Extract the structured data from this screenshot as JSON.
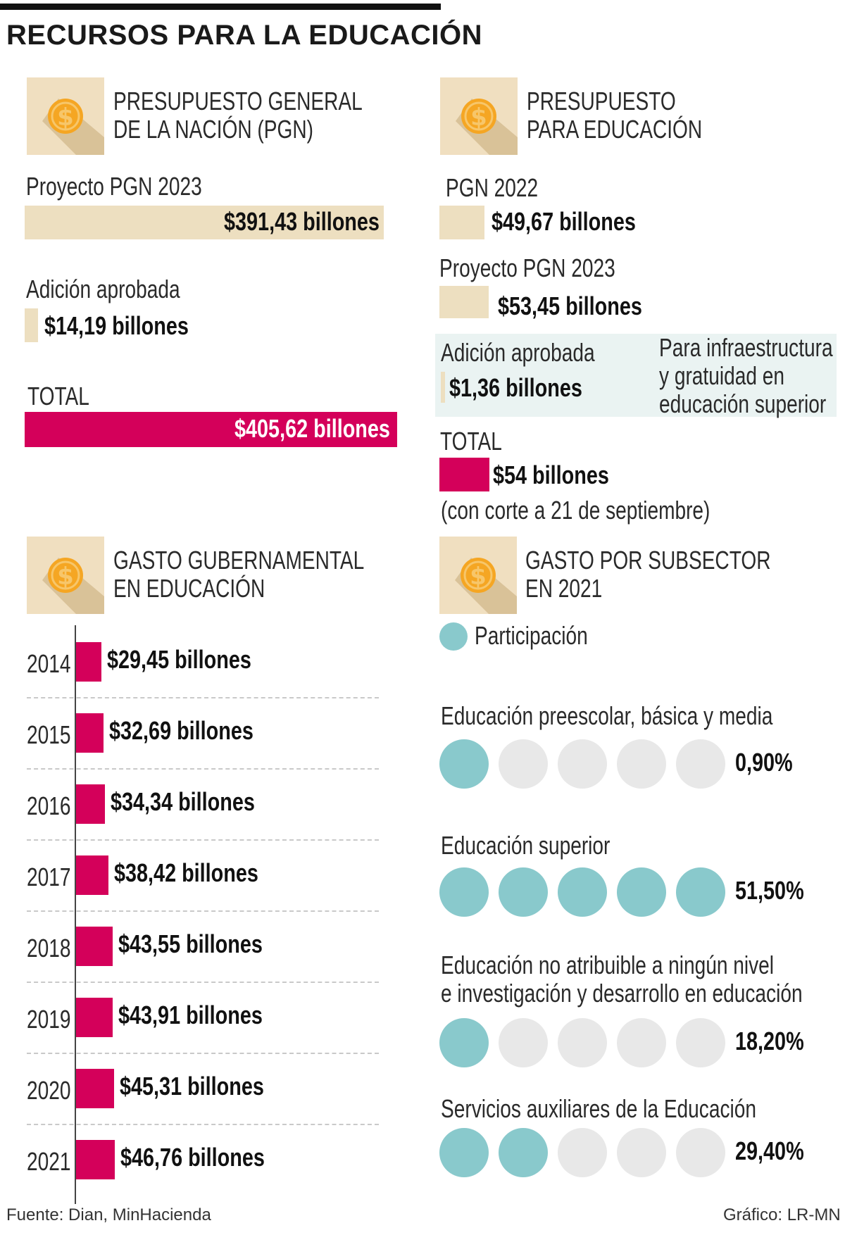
{
  "title": "RECURSOS PARA LA EDUCACIÓN",
  "pgn": {
    "heading_line1": "PRESUPUESTO GENERAL",
    "heading_line2": "DE LA NACIÓN (PGN)",
    "project_label": "Proyecto PGN 2023",
    "project_value": "$391,43 billones",
    "addition_label": "Adición aprobada",
    "addition_value": "$14,19 billones",
    "total_label": "TOTAL",
    "total_value": "$405,62 billones"
  },
  "edu_budget": {
    "heading_line1": "PRESUPUESTO",
    "heading_line2": "PARA EDUCACIÓN",
    "pgn2022_label": "PGN 2022",
    "pgn2022_value": "$49,67 billones",
    "project_label": "Proyecto PGN 2023",
    "project_value": "$53,45 billones",
    "addition_label": "Adición aprobada",
    "addition_value": "$1,36 billones",
    "note_line1": "Para infraestructura",
    "note_line2": "y gratuidad en",
    "note_line3": "educación superior",
    "total_label": "TOTAL",
    "total_value": "$54 billones",
    "cutoff": "(con corte a 21 de septiembre)"
  },
  "spending": {
    "heading_line1": "GASTO GUBERNAMENTAL",
    "heading_line2": "EN EDUCACIÓN"
  },
  "subsector": {
    "heading_line1": "GASTO POR SUBSECTOR",
    "heading_line2": "EN 2021",
    "legend": "Participación",
    "items": [
      {
        "label": "Educación preescolar, básica y media",
        "label2": "",
        "pct": "0,90%",
        "filled": 1
      },
      {
        "label": "Educación superior",
        "label2": "",
        "pct": "51,50%",
        "filled": 5
      },
      {
        "label": "Educación no atribuible a ningún nivel",
        "label2": "e investigación y desarrollo en educación",
        "pct": "18,20%",
        "filled": 1
      },
      {
        "label": "Servicios auxiliares de la Educación",
        "label2": "",
        "pct": "29,40%",
        "filled": 2
      }
    ]
  },
  "footer": {
    "source": "Fuente: Dian, MinHacienda",
    "credit": "Gráfico: LR-MN"
  },
  "colors": {
    "accent": "#d4005a",
    "beige": "#eddfc0",
    "teal": "#89c9cc",
    "note_bg": "#eaf3f2"
  },
  "chart_data": [
    {
      "type": "bar",
      "title": "PRESUPUESTO GENERAL DE LA NACIÓN (PGN)",
      "categories": [
        "Proyecto PGN 2023",
        "Adición aprobada",
        "TOTAL"
      ],
      "values": [
        391.43,
        14.19,
        405.62
      ],
      "unit": "billones"
    },
    {
      "type": "bar",
      "title": "PRESUPUESTO PARA EDUCACIÓN",
      "categories": [
        "PGN 2022",
        "Proyecto PGN 2023",
        "Adición aprobada",
        "TOTAL"
      ],
      "values": [
        49.67,
        53.45,
        1.36,
        54
      ],
      "unit": "billones"
    },
    {
      "type": "bar",
      "title": "GASTO GUBERNAMENTAL EN EDUCACIÓN",
      "categories": [
        "2014",
        "2015",
        "2016",
        "2017",
        "2018",
        "2019",
        "2020",
        "2021"
      ],
      "values": [
        29.45,
        32.69,
        34.34,
        38.42,
        43.55,
        43.91,
        45.31,
        46.76
      ],
      "labels": [
        "$29,45 billones",
        "$32,69 billones",
        "$34,34 billones",
        "$38,42 billones",
        "$43,55 billones",
        "$43,91 billones",
        "$45,31 billones",
        "$46,76 billones"
      ],
      "unit": "billones"
    },
    {
      "type": "bar",
      "title": "GASTO POR SUBSECTOR EN 2021",
      "categories": [
        "Educación preescolar, básica y media",
        "Educación superior",
        "Educación no atribuible a ningún nivel e investigación y desarrollo en educación",
        "Servicios auxiliares de la Educación"
      ],
      "values": [
        0.9,
        51.5,
        18.2,
        29.4
      ],
      "unit": "%"
    }
  ]
}
